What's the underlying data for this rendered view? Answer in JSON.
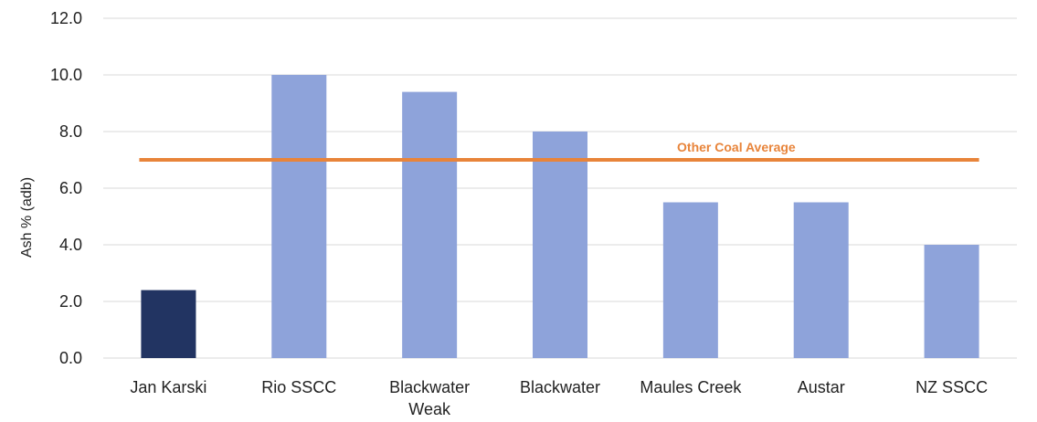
{
  "chart_data": {
    "type": "bar",
    "title": "",
    "xlabel": "",
    "ylabel": "Ash % (adb)",
    "ylim": [
      0,
      12
    ],
    "yticks": [
      "0.0",
      "2.0",
      "4.0",
      "6.0",
      "8.0",
      "10.0",
      "12.0"
    ],
    "grid": true,
    "categories": [
      [
        "Jan Karski"
      ],
      [
        "Rio SSCC"
      ],
      [
        "Blackwater",
        "Weak"
      ],
      [
        "Blackwater"
      ],
      [
        "Maules Creek"
      ],
      [
        "Austar"
      ],
      [
        "NZ SSCC"
      ]
    ],
    "values": [
      2.4,
      10.0,
      9.4,
      8.0,
      5.5,
      5.5,
      4.0
    ],
    "bar_colors": [
      "#223462",
      "#8ea3da",
      "#8ea3da",
      "#8ea3da",
      "#8ea3da",
      "#8ea3da",
      "#8ea3da"
    ],
    "reference_line": {
      "label": "Other Coal Average",
      "value": 7.0,
      "color": "#e8843a"
    },
    "grid_color": "#d9d9d9"
  }
}
